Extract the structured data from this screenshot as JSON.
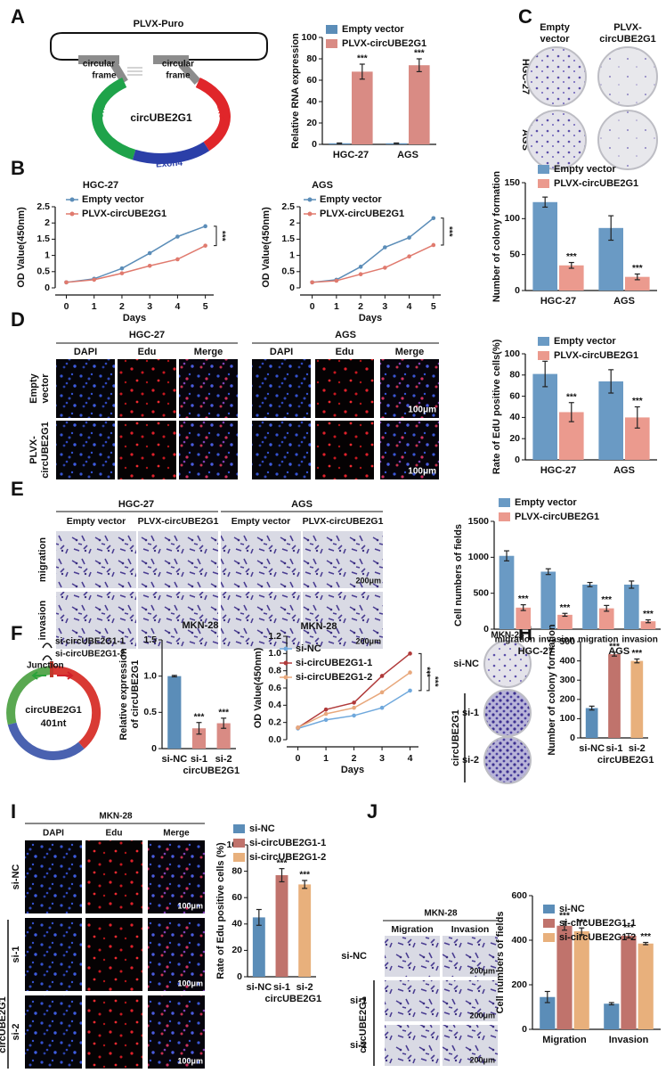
{
  "figure": {
    "panel_letters": [
      "A",
      "B",
      "C",
      "D",
      "E",
      "F",
      "G",
      "H",
      "I",
      "J"
    ],
    "A": {
      "plasmid": "PLVX-Puro",
      "frame_left": [
        "circular",
        "frame"
      ],
      "frame_right": [
        "circular",
        "frame"
      ],
      "insert": "circUBE2G1",
      "exons": [
        "Exon2",
        "Exon3",
        "Exon4"
      ]
    },
    "C": {
      "columns": [
        [
          "Empty",
          "vector"
        ],
        [
          "PLVX-",
          "circUBE2G1"
        ]
      ],
      "rows": [
        "HGC-27",
        "AGS"
      ]
    },
    "D": {
      "groups": [
        "HGC-27",
        "AGS"
      ],
      "stains": [
        "DAPI",
        "Edu",
        "Merge",
        "DAPI",
        "Edu",
        "Merge"
      ],
      "rows": [
        [
          "Empty",
          "vector"
        ],
        [
          "PLVX-",
          "circUBE2G1"
        ]
      ],
      "scale_bars": [
        "100μm",
        "100μm"
      ]
    },
    "E": {
      "groups": [
        "HGC-27",
        "AGS"
      ],
      "columns": [
        "Empty vector",
        "PLVX-circUBE2G1",
        "Empty vector",
        "PLVX-circUBE2G1"
      ],
      "rows": [
        "migration",
        "invasion"
      ],
      "scale_bars": [
        "200μm",
        "200μm"
      ]
    },
    "F": {
      "sirnas": [
        "si-circUBE2G1-1",
        "si-circUBE2G1-2"
      ],
      "junction": "Junction",
      "name": "circUBE2G1",
      "length": "401nt"
    },
    "H": {
      "title": "MKN-28",
      "rows": [
        "si-NC",
        "si-1",
        "si-2"
      ],
      "group": "circUBE2G1"
    },
    "I": {
      "title": "MKN-28",
      "stains": [
        "DAPI",
        "Edu",
        "Merge"
      ],
      "rows": [
        "si-NC",
        "si-1",
        "si-2"
      ],
      "group": "circUBE2G1",
      "scale_bars": [
        "100μm",
        "100μm",
        "100μm"
      ]
    },
    "J": {
      "title": "MKN-28",
      "columns": [
        "Migration",
        "Invasion"
      ],
      "rows": [
        "si-NC",
        "si-1",
        "si-2"
      ],
      "group": "circUBE2G1",
      "scale_bars": [
        "200μm",
        "200μm",
        "200μm"
      ]
    }
  },
  "chart_data": [
    {
      "type": "bar",
      "ylabel": "Relative RNA expression",
      "categories": [
        "HGC-27",
        "AGS"
      ],
      "series": [
        {
          "name": "Empty vector",
          "color": "#5b8db8",
          "values": [
            1,
            1
          ],
          "errors": [
            0.3,
            0.3
          ]
        },
        {
          "name": "PLVX-circUBE2G1",
          "color": "#d98b84",
          "values": [
            68,
            74
          ],
          "errors": [
            7,
            6
          ],
          "significance": [
            "***",
            "***"
          ]
        }
      ],
      "ylim": [
        0,
        100
      ],
      "yticks": [
        0,
        20,
        40,
        60,
        80,
        100
      ]
    },
    {
      "type": "line",
      "title": "HGC-27",
      "xlabel": "Days",
      "ylabel": "OD Value(450nm)",
      "x": [
        0,
        1,
        2,
        3,
        4,
        5
      ],
      "series": [
        {
          "name": "Empty vector",
          "color": "#5b8db8",
          "values": [
            0.17,
            0.28,
            0.6,
            1.07,
            1.58,
            1.9
          ]
        },
        {
          "name": "PLVX-circUBE2G1",
          "color": "#e07a6e",
          "values": [
            0.17,
            0.25,
            0.45,
            0.68,
            0.88,
            1.3
          ]
        }
      ],
      "xlim": [
        -0.4,
        5.3
      ],
      "xticks": [
        0,
        1,
        2,
        3,
        4,
        5
      ],
      "ylim": [
        0,
        2.5
      ],
      "yticks": [
        0,
        0.5,
        1,
        1.5,
        2,
        2.5
      ],
      "significance": [
        "***"
      ]
    },
    {
      "type": "line",
      "title": "AGS",
      "xlabel": "Days",
      "ylabel": "OD Value(450nm)",
      "x": [
        0,
        1,
        2,
        3,
        4,
        5
      ],
      "series": [
        {
          "name": "Empty vector",
          "color": "#5b8db8",
          "values": [
            0.17,
            0.25,
            0.65,
            1.25,
            1.55,
            2.15
          ]
        },
        {
          "name": "PLVX-circUBE2G1",
          "color": "#e07a6e",
          "values": [
            0.17,
            0.22,
            0.42,
            0.62,
            0.97,
            1.32
          ]
        }
      ],
      "xlim": [
        -0.5,
        5.3
      ],
      "xticks": [
        0,
        1,
        2,
        3,
        4,
        5
      ],
      "ylim": [
        0,
        2.5
      ],
      "yticks": [
        0,
        0.5,
        1,
        1.5,
        2,
        2.5
      ],
      "significance": [
        "***"
      ]
    },
    {
      "type": "bar",
      "ylabel": "Number of colony formation",
      "categories": [
        "HGC-27",
        "AGS"
      ],
      "series": [
        {
          "name": "Empty vector",
          "color": "#6a9ac4",
          "values": [
            123,
            87
          ],
          "errors": [
            7,
            17
          ]
        },
        {
          "name": "PLVX-circUBE2G1",
          "color": "#eb9a8e",
          "values": [
            35,
            19
          ],
          "errors": [
            4,
            4
          ],
          "significance": [
            "***",
            "***"
          ]
        }
      ],
      "ylim": [
        0,
        150
      ],
      "yticks": [
        0,
        50,
        100,
        150
      ]
    },
    {
      "type": "bar",
      "ylabel": "Rate of EdU positive cells(%)",
      "categories": [
        "HGC-27",
        "AGS"
      ],
      "series": [
        {
          "name": "Empty vector",
          "color": "#6a9ac4",
          "values": [
            81,
            74
          ],
          "errors": [
            12,
            11
          ]
        },
        {
          "name": "PLVX-circUBE2G1",
          "color": "#eb9a8e",
          "values": [
            45,
            40
          ],
          "errors": [
            9,
            10
          ],
          "significance": [
            "***",
            "***"
          ]
        }
      ],
      "ylim": [
        0,
        100
      ],
      "yticks": [
        0,
        20,
        40,
        60,
        80,
        100
      ]
    },
    {
      "type": "bar",
      "ylabel": "Cell numbers of fields",
      "categories": [
        "migration",
        "invasion",
        "migration",
        "invasion"
      ],
      "group_labels": [
        "HGC-27",
        "AGS"
      ],
      "series": [
        {
          "name": "Empty vector",
          "color": "#6a9ac4",
          "values": [
            1020,
            800,
            620,
            620
          ],
          "errors": [
            70,
            40,
            30,
            50
          ]
        },
        {
          "name": "PLVX-circUBE2G1",
          "color": "#eb9a8e",
          "values": [
            300,
            200,
            290,
            110
          ],
          "errors": [
            40,
            20,
            40,
            20
          ],
          "significance": [
            "***",
            "***",
            "***",
            "***"
          ]
        }
      ],
      "ylim": [
        0,
        1500
      ],
      "yticks": [
        0,
        500,
        1000,
        1500
      ]
    },
    {
      "type": "bar",
      "title": "MKN-28",
      "ylabel": [
        "Relative expression",
        "of circUBE2G1"
      ],
      "categories": [
        "si-NC",
        "si-1",
        "si-2"
      ],
      "group_label": "circUBE2G1",
      "values": [
        1,
        0.28,
        0.35
      ],
      "errors": [
        0.01,
        0.08,
        0.07
      ],
      "colors": [
        "#5b8db8",
        "#d98b84",
        "#d98b84"
      ],
      "significance": [
        null,
        "***",
        "***"
      ],
      "ylim": [
        0,
        1.5
      ],
      "yticks": [
        0,
        0.5,
        {
          "value": 1,
          "label": "1.0"
        },
        1.5
      ]
    },
    {
      "type": "line",
      "title": "MKN-28",
      "xlabel": "Days",
      "ylabel": "OD Value(450nm)",
      "x": [
        0,
        1,
        2,
        3,
        4
      ],
      "series": [
        {
          "name": "si-NC",
          "color": "#6fa8dc",
          "values": [
            0.13,
            0.23,
            0.28,
            0.37,
            0.57
          ]
        },
        {
          "name": "si-circUBE2G1-1",
          "color": "#b03a3a",
          "values": [
            0.14,
            0.35,
            0.43,
            0.74,
            1.0
          ]
        },
        {
          "name": "si-circUBE2G1-2",
          "color": "#e8a87c",
          "values": [
            0.14,
            0.3,
            0.37,
            0.55,
            0.78
          ]
        }
      ],
      "xlim": [
        -0.4,
        4.3
      ],
      "xticks": [
        0,
        1,
        2,
        3,
        4
      ],
      "ylim": [
        0,
        1.2
      ],
      "yticks": [
        {
          "value": 0,
          "label": "0.0"
        },
        0.2,
        0.4,
        0.6,
        0.8,
        {
          "value": 1,
          "label": "1.0"
        },
        1.2
      ],
      "significance": [
        "***",
        "***"
      ]
    },
    {
      "type": "bar",
      "ylabel": "Number of colony formation",
      "categories": [
        "si-NC",
        "si-1",
        "si-2"
      ],
      "group_label": "circUBE2G1",
      "values": [
        155,
        435,
        400
      ],
      "errors": [
        10,
        10,
        10
      ],
      "colors": [
        "#5b8db8",
        "#c0736c",
        "#e8b07c"
      ],
      "significance": [
        null,
        "***",
        "***"
      ],
      "ylim": [
        0,
        500
      ],
      "yticks": [
        0,
        100,
        200,
        300,
        400,
        500
      ]
    },
    {
      "type": "bar",
      "ylabel": "Rate of Edu positive cells (%)",
      "categories": [
        "si-NC",
        "si-1",
        "si-2"
      ],
      "group_label": "circUBE2G1",
      "legend_labels": [
        "si-NC",
        "si-circUBE2G1-1",
        "si-circUBE2G1-2"
      ],
      "values": [
        45,
        77,
        70
      ],
      "errors": [
        6,
        5,
        3
      ],
      "colors": [
        "#5b8db8",
        "#c0736c",
        "#e8b07c"
      ],
      "significance": [
        null,
        "***",
        "***"
      ],
      "ylim": [
        0,
        100
      ],
      "yticks": [
        0,
        20,
        40,
        60,
        80,
        100
      ]
    },
    {
      "type": "bar",
      "ylabel": "Cell numbers of fields",
      "categories": [
        "Migration",
        "Invasion"
      ],
      "series": [
        {
          "name": "si-NC",
          "color": "#5b8db8",
          "values": [
            145,
            115
          ],
          "errors": [
            25,
            5
          ]
        },
        {
          "name": "si-circUBE2G1-1",
          "color": "#c0736c",
          "values": [
            465,
            420
          ],
          "errors": [
            20,
            10
          ],
          "significance": [
            "***",
            "***"
          ]
        },
        {
          "name": "si-circUBE2G1-2",
          "color": "#e8b07c",
          "values": [
            440,
            385
          ],
          "errors": [
            15,
            5
          ],
          "significance": [
            "***",
            "***"
          ]
        }
      ],
      "ylim": [
        0,
        600
      ],
      "yticks": [
        0,
        200,
        400,
        600
      ]
    }
  ]
}
